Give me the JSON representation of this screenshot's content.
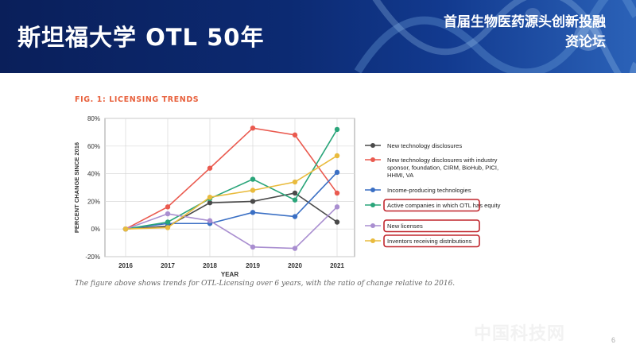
{
  "slide": {
    "title": "斯坦福大学 OTL 50年",
    "forum_title": "首届生物医药源头创新投融资论坛",
    "page_number": "6",
    "watermark": "中国科技网"
  },
  "figure": {
    "heading": "FIG. 1: LICENSING TRENDS",
    "caption": "The figure above shows trends for OTL-Licensing over 6 years, with the ratio of change relative to 2016."
  },
  "colors": {
    "banner": "#0c2a72",
    "heading": "#e8603c",
    "highlight_box": "#c0262d"
  },
  "chart_data": {
    "type": "line",
    "xlabel": "YEAR",
    "ylabel": "PERCENT CHANGE SINCE 2016",
    "x": [
      "2016",
      "2017",
      "2018",
      "2019",
      "2020",
      "2021"
    ],
    "ylim": [
      -20,
      80
    ],
    "yticks": [
      -20,
      0,
      20,
      40,
      60,
      80
    ],
    "ytick_labels": [
      "-20%",
      "0%",
      "20%",
      "40%",
      "60%",
      "80%"
    ],
    "grid": true,
    "legend_position": "right",
    "series": [
      {
        "name": "New technology disclosures",
        "color": "#4a4a4a",
        "values": [
          0,
          2,
          19,
          20,
          26,
          5
        ],
        "highlighted": false
      },
      {
        "name": "New technology disclosures with industry sponsor, foundation, CIRM, BioHub, PICI, HHMI, VA",
        "color": "#ea5a4f",
        "values": [
          0,
          16,
          44,
          73,
          68,
          26
        ],
        "highlighted": false
      },
      {
        "name": "Income-producing technologies",
        "color": "#3a6fc4",
        "values": [
          0,
          4,
          4,
          12,
          9,
          41
        ],
        "highlighted": false
      },
      {
        "name": "Active companies in which OTL has equity",
        "color": "#2aa57a",
        "values": [
          0,
          5,
          22,
          36,
          21,
          72
        ],
        "highlighted": true
      },
      {
        "name": "New licenses",
        "color": "#a98ed0",
        "values": [
          0,
          11,
          6,
          -13,
          -14,
          16
        ],
        "highlighted": true
      },
      {
        "name": "Inventors receiving distributions",
        "color": "#e9bb3d",
        "values": [
          0,
          1,
          23,
          28,
          34,
          53
        ],
        "highlighted": true
      }
    ]
  }
}
